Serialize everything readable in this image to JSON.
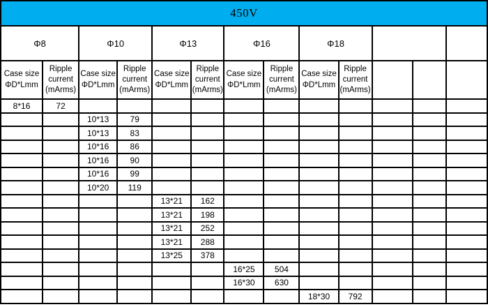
{
  "title": "450V",
  "accent_color": "#00AEEF",
  "border_color": "#000000",
  "groups": {
    "g8": {
      "label": "Φ8"
    },
    "g10": {
      "label": "Φ10"
    },
    "g13": {
      "label": "Φ13"
    },
    "g16": {
      "label": "Φ16"
    },
    "g18": {
      "label": "Φ18"
    }
  },
  "subheader": {
    "case_line1": "Case size",
    "case_line2": "ΦD*Lmm",
    "ripple_line1": "Ripple",
    "ripple_line2": "current",
    "ripple_line3": "(mArms)"
  },
  "rows": [
    [
      "8*16",
      "72",
      "",
      "",
      "",
      "",
      "",
      "",
      "",
      "",
      "",
      "",
      ""
    ],
    [
      "",
      "",
      "10*13",
      "79",
      "",
      "",
      "",
      "",
      "",
      "",
      "",
      "",
      ""
    ],
    [
      "",
      "",
      "10*13",
      "83",
      "",
      "",
      "",
      "",
      "",
      "",
      "",
      "",
      ""
    ],
    [
      "",
      "",
      "10*16",
      "86",
      "",
      "",
      "",
      "",
      "",
      "",
      "",
      "",
      ""
    ],
    [
      "",
      "",
      "10*16",
      "90",
      "",
      "",
      "",
      "",
      "",
      "",
      "",
      "",
      ""
    ],
    [
      "",
      "",
      "10*16",
      "99",
      "",
      "",
      "",
      "",
      "",
      "",
      "",
      "",
      ""
    ],
    [
      "",
      "",
      "10*20",
      "119",
      "",
      "",
      "",
      "",
      "",
      "",
      "",
      "",
      ""
    ],
    [
      "",
      "",
      "",
      "",
      "13*21",
      "162",
      "",
      "",
      "",
      "",
      "",
      "",
      ""
    ],
    [
      "",
      "",
      "",
      "",
      "13*21",
      "198",
      "",
      "",
      "",
      "",
      "",
      "",
      ""
    ],
    [
      "",
      "",
      "",
      "",
      "13*21",
      "252",
      "",
      "",
      "",
      "",
      "",
      "",
      ""
    ],
    [
      "",
      "",
      "",
      "",
      "13*21",
      "288",
      "",
      "",
      "",
      "",
      "",
      "",
      ""
    ],
    [
      "",
      "",
      "",
      "",
      "13*25",
      "378",
      "",
      "",
      "",
      "",
      "",
      "",
      ""
    ],
    [
      "",
      "",
      "",
      "",
      "",
      "",
      "16*25",
      "504",
      "",
      "",
      "",
      "",
      ""
    ],
    [
      "",
      "",
      "",
      "",
      "",
      "",
      "16*30",
      "630",
      "",
      "",
      "",
      "",
      ""
    ],
    [
      "",
      "",
      "",
      "",
      "",
      "",
      "",
      "",
      "18*30",
      "792",
      "",
      "",
      ""
    ]
  ]
}
